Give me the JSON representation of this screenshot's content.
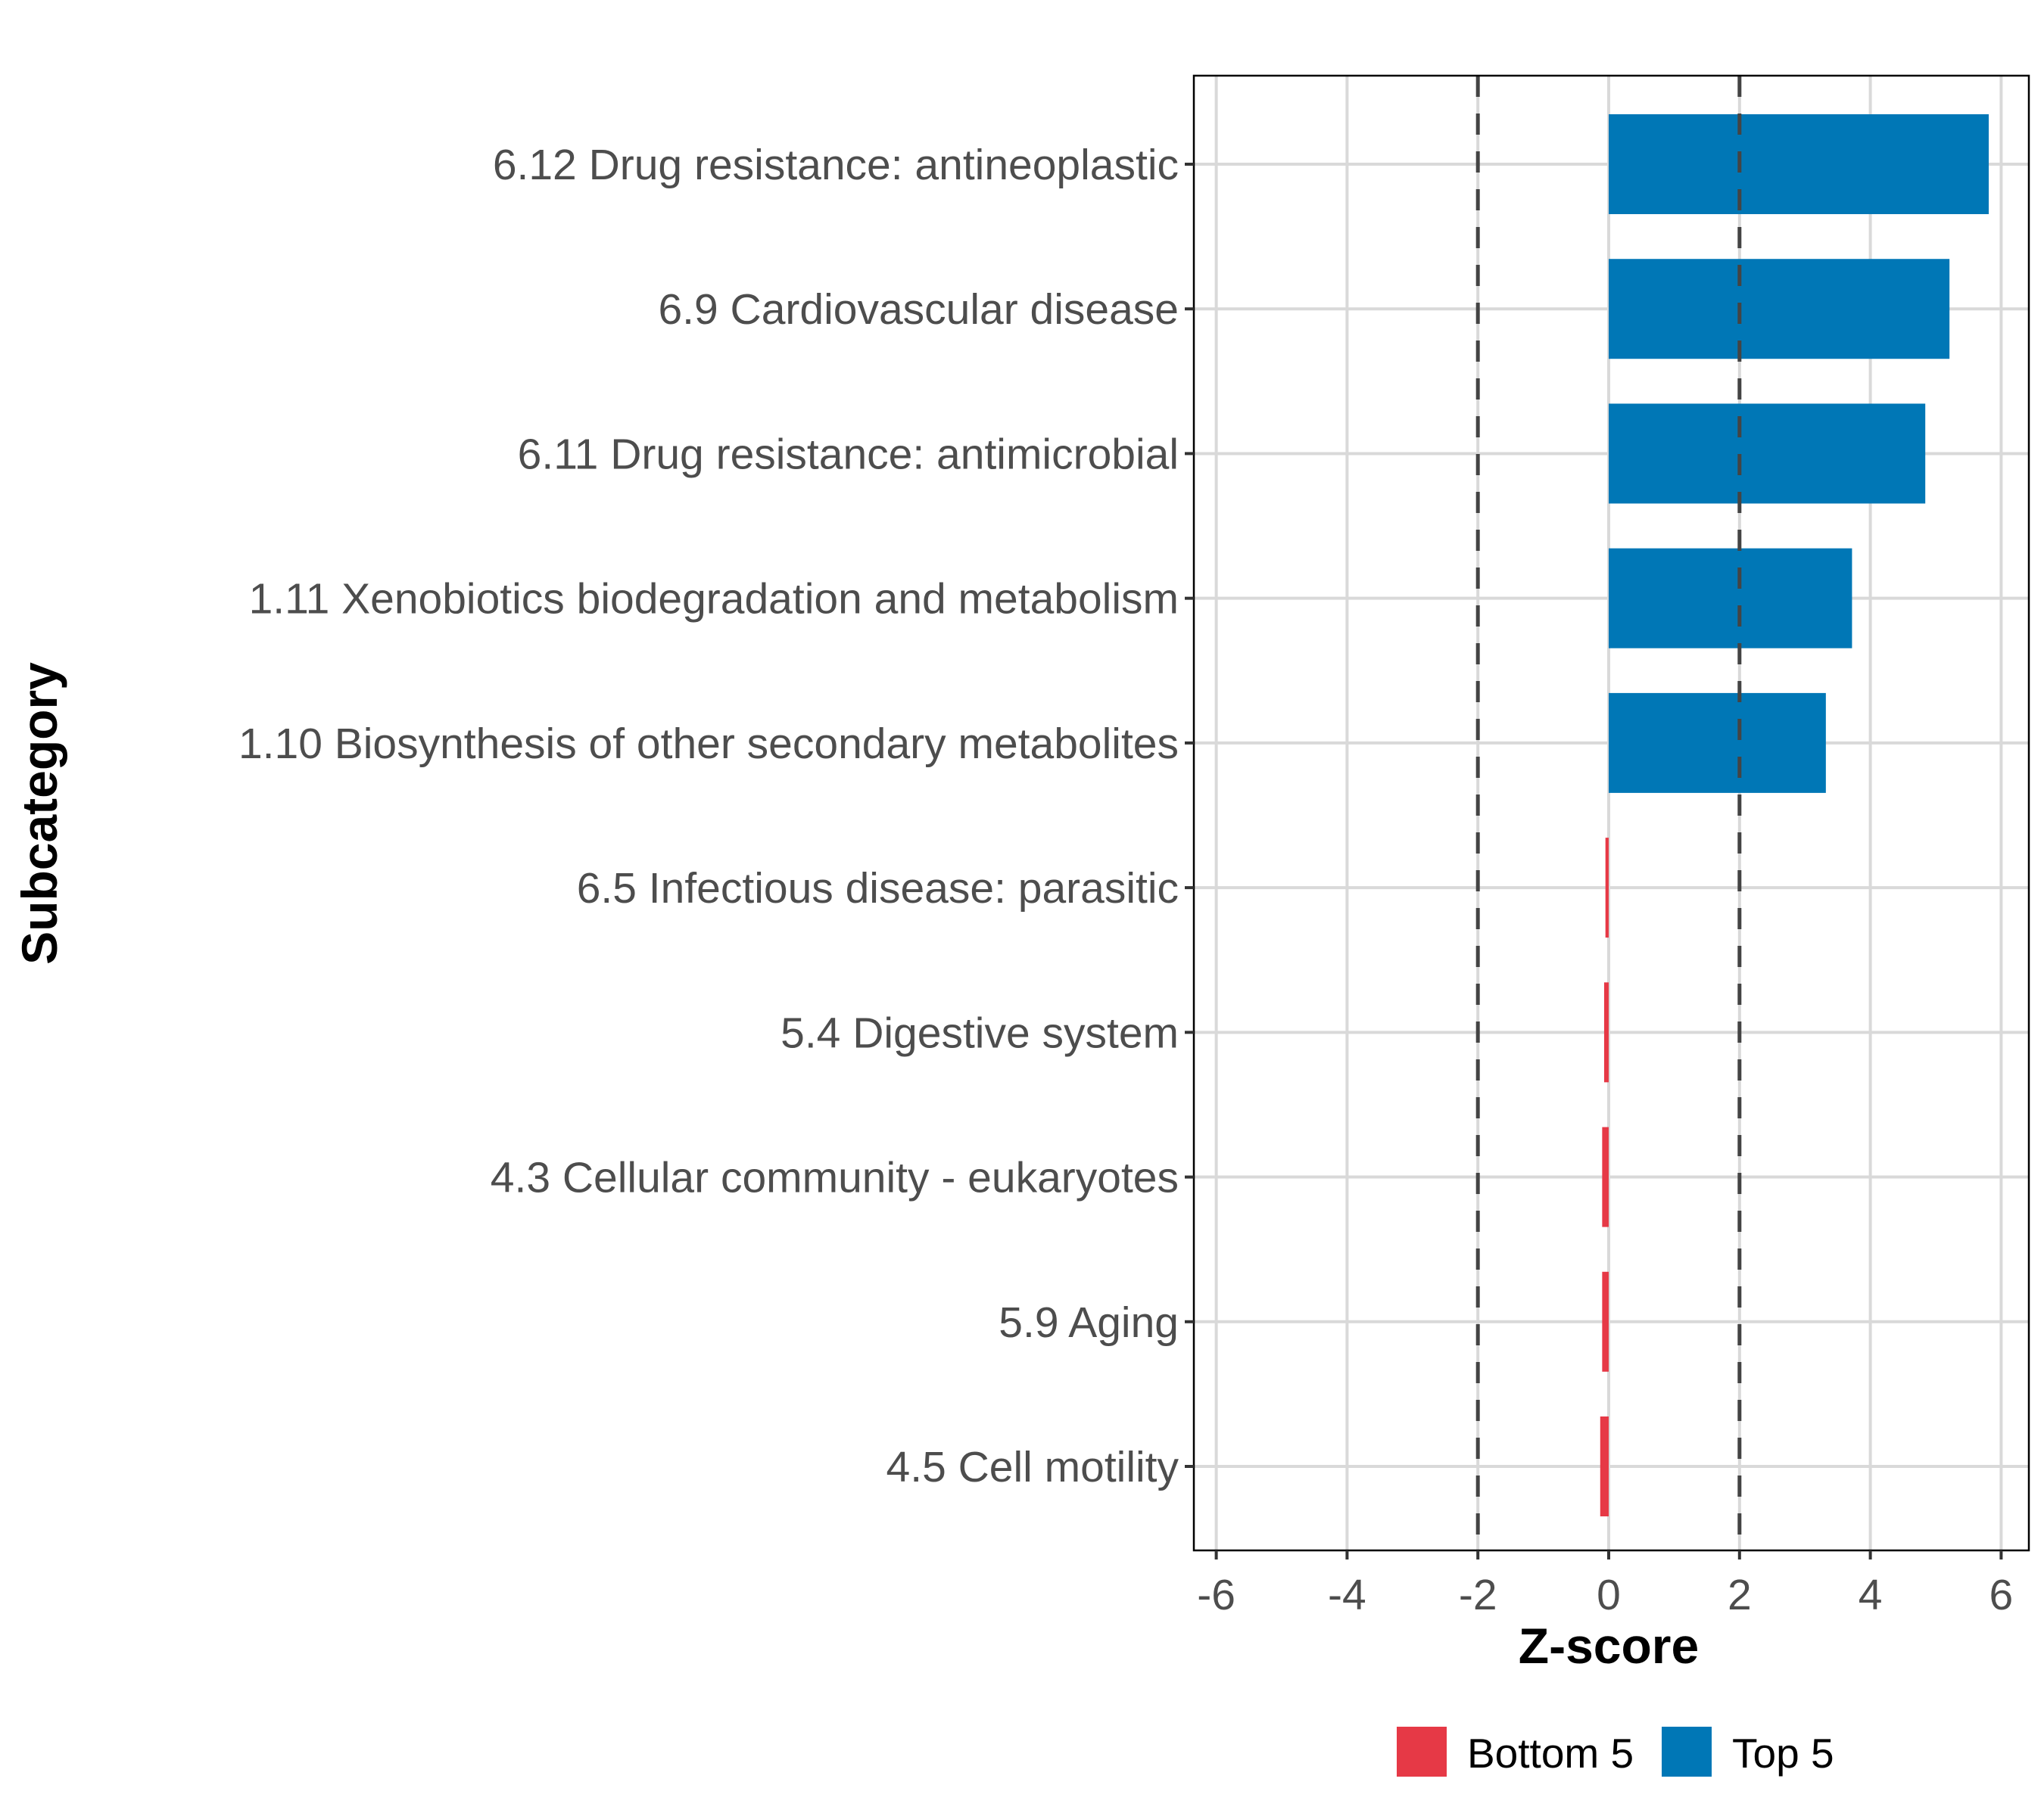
{
  "chart_data": {
    "type": "bar",
    "orientation": "horizontal",
    "title": "",
    "xlabel": "Z-score",
    "ylabel": "Subcategory",
    "xlim": [
      -6.4,
      6.4
    ],
    "xticks": [
      -6,
      -4,
      -2,
      0,
      2,
      4,
      6
    ],
    "xtick_labels": [
      "-6",
      "-4",
      "-2",
      "0",
      "2",
      "4",
      "6"
    ],
    "reference_lines": [
      -2,
      2
    ],
    "grid": true,
    "categories": [
      "6.12 Drug resistance: antineoplastic",
      "6.9 Cardiovascular disease",
      "6.11 Drug resistance: antimicrobial",
      "1.11 Xenobiotics biodegradation and metabolism",
      "1.10 Biosynthesis of other secondary metabolites",
      "6.5 Infectious disease: parasitic",
      "5.4 Digestive system",
      "4.3 Cellular community - eukaryotes",
      "5.9 Aging",
      "4.5 Cell motility"
    ],
    "values": [
      5.81,
      5.21,
      4.84,
      3.72,
      3.32,
      -0.05,
      -0.07,
      -0.1,
      -0.1,
      -0.13
    ],
    "groups": [
      "Top 5",
      "Top 5",
      "Top 5",
      "Top 5",
      "Top 5",
      "Bottom 5",
      "Bottom 5",
      "Bottom 5",
      "Bottom 5",
      "Bottom 5"
    ],
    "legend": {
      "position": "bottom",
      "entries": [
        {
          "label": "Bottom 5",
          "color": "#e63946"
        },
        {
          "label": "Top 5",
          "color": "#0077b6"
        }
      ]
    },
    "colors": {
      "Top 5": "#0077b6",
      "Bottom 5": "#e63946"
    }
  }
}
